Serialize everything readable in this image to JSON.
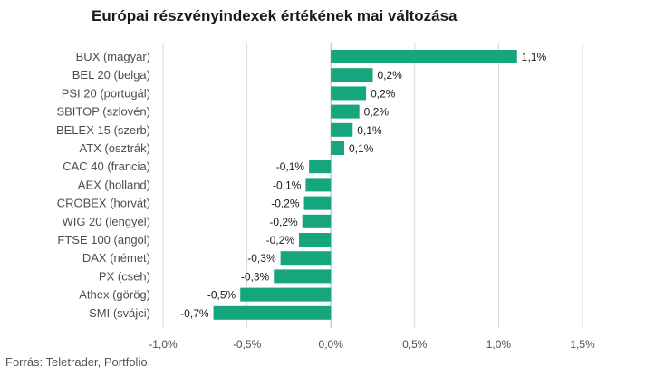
{
  "chart_data": {
    "type": "bar",
    "orientation": "horizontal",
    "title": "Európai részvényindexek értékének mai változása",
    "xlabel": "",
    "ylabel": "",
    "xlim": [
      -1.0,
      1.5
    ],
    "grid": true,
    "categories": [
      "BUX (magyar)",
      "BEL 20 (belga)",
      "PSI 20 (portugál)",
      "SBITOP (szlovén)",
      "BELEX 15 (szerb)",
      "ATX (osztrák)",
      "CAC 40 (francia)",
      "AEX (holland)",
      "CROBEX (horvát)",
      "WIG 20 (lengyel)",
      "FTSE 100 (angol)",
      "DAX (német)",
      "PX (cseh)",
      "Athex (görög)",
      "SMI (svájci)"
    ],
    "values": [
      1.11,
      0.25,
      0.21,
      0.17,
      0.13,
      0.08,
      -0.13,
      -0.15,
      -0.16,
      -0.17,
      -0.19,
      -0.3,
      -0.34,
      -0.54,
      -0.7
    ],
    "value_labels": [
      "1,1%",
      "0,2%",
      "0,2%",
      "0,2%",
      "0,1%",
      "0,1%",
      "-0,1%",
      "-0,1%",
      "-0,2%",
      "-0,2%",
      "-0,2%",
      "-0,3%",
      "-0,3%",
      "-0,5%",
      "-0,7%"
    ],
    "ticks": [
      -1.0,
      -0.5,
      0.0,
      0.5,
      1.0,
      1.5
    ],
    "tick_labels": [
      "-1,0%",
      "-0,5%",
      "0,0%",
      "0,5%",
      "1,0%",
      "1,5%"
    ],
    "bar_color": "#16a67d",
    "grid_color": "#d9d9d9"
  },
  "source": "Forrás: Teletrader, Portfolio"
}
